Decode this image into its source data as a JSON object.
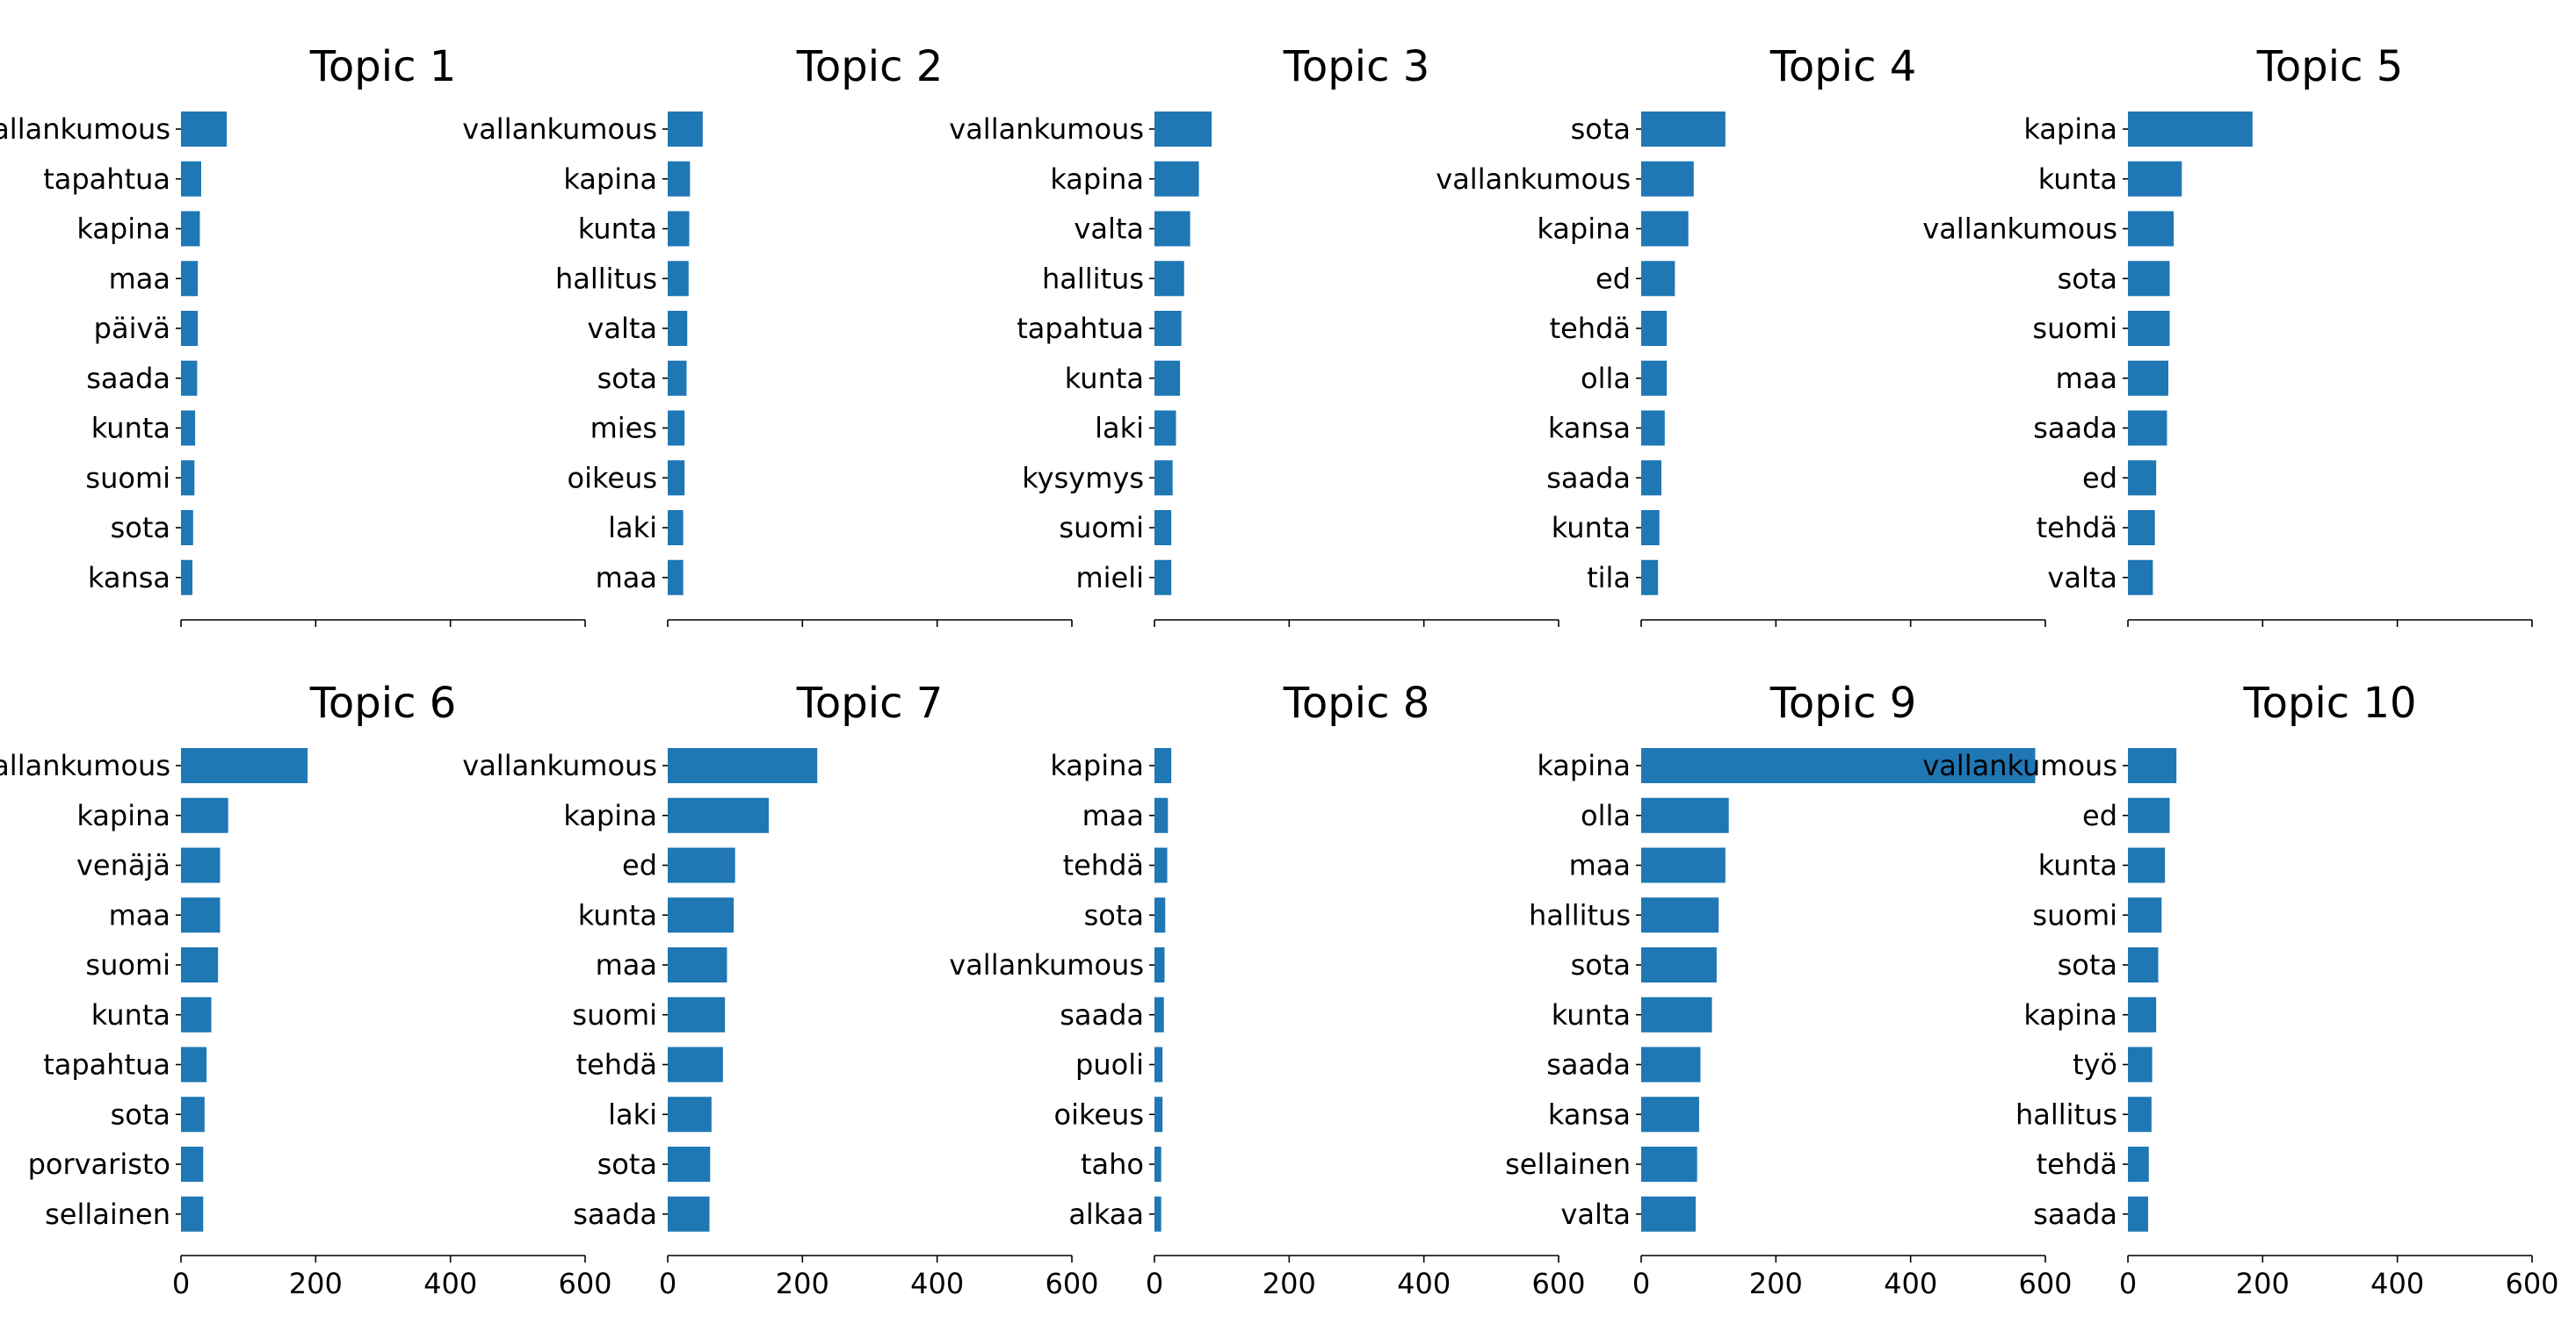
{
  "figure": {
    "bar_color": "#1f77b4",
    "axis_color": "#000000",
    "background": "#ffffff"
  },
  "chart_data": [
    {
      "type": "bar",
      "orientation": "horizontal",
      "title": "Topic 1",
      "categories": [
        "vallankumous",
        "tapahtua",
        "kapina",
        "maa",
        "päivä",
        "saada",
        "kunta",
        "suomi",
        "sota",
        "kansa"
      ],
      "values": [
        68,
        30,
        28,
        25,
        25,
        24,
        21,
        20,
        18,
        17
      ],
      "xlim": [
        0,
        600
      ],
      "xticks": [
        "0",
        "200",
        "400",
        "600"
      ],
      "show_tick_labels": false,
      "grid": false
    },
    {
      "type": "bar",
      "orientation": "horizontal",
      "title": "Topic 2",
      "categories": [
        "vallankumous",
        "kapina",
        "kunta",
        "hallitus",
        "valta",
        "sota",
        "mies",
        "oikeus",
        "laki",
        "maa"
      ],
      "values": [
        52,
        33,
        32,
        31,
        29,
        28,
        25,
        25,
        23,
        23
      ],
      "xlim": [
        0,
        600
      ],
      "xticks": [
        "0",
        "200",
        "400",
        "600"
      ],
      "show_tick_labels": false,
      "grid": false
    },
    {
      "type": "bar",
      "orientation": "horizontal",
      "title": "Topic 3",
      "categories": [
        "vallankumous",
        "kapina",
        "valta",
        "hallitus",
        "tapahtua",
        "kunta",
        "laki",
        "kysymys",
        "suomi",
        "mieli"
      ],
      "values": [
        85,
        66,
        53,
        44,
        40,
        38,
        32,
        27,
        25,
        25
      ],
      "xlim": [
        0,
        600
      ],
      "xticks": [
        "0",
        "200",
        "400",
        "600"
      ],
      "show_tick_labels": false,
      "grid": false
    },
    {
      "type": "bar",
      "orientation": "horizontal",
      "title": "Topic 4",
      "categories": [
        "sota",
        "vallankumous",
        "kapina",
        "ed",
        "tehdä",
        "olla",
        "kansa",
        "saada",
        "kunta",
        "tila"
      ],
      "values": [
        125,
        78,
        70,
        50,
        38,
        38,
        35,
        30,
        27,
        25
      ],
      "xlim": [
        0,
        600
      ],
      "xticks": [
        "0",
        "200",
        "400",
        "600"
      ],
      "show_tick_labels": false,
      "grid": false
    },
    {
      "type": "bar",
      "orientation": "horizontal",
      "title": "Topic 5",
      "categories": [
        "kapina",
        "kunta",
        "vallankumous",
        "sota",
        "suomi",
        "maa",
        "saada",
        "ed",
        "tehdä",
        "valta"
      ],
      "values": [
        185,
        80,
        68,
        62,
        62,
        60,
        58,
        42,
        40,
        37
      ],
      "xlim": [
        0,
        600
      ],
      "xticks": [
        "0",
        "200",
        "400",
        "600"
      ],
      "show_tick_labels": false,
      "grid": false
    },
    {
      "type": "bar",
      "orientation": "horizontal",
      "title": "Topic 6",
      "categories": [
        "vallankumous",
        "kapina",
        "venäjä",
        "maa",
        "suomi",
        "kunta",
        "tapahtua",
        "sota",
        "porvaristo",
        "sellainen"
      ],
      "values": [
        188,
        70,
        58,
        58,
        55,
        45,
        38,
        35,
        33,
        33
      ],
      "xlim": [
        0,
        600
      ],
      "xticks": [
        "0",
        "200",
        "400",
        "600"
      ],
      "show_tick_labels": true,
      "grid": false
    },
    {
      "type": "bar",
      "orientation": "horizontal",
      "title": "Topic 7",
      "categories": [
        "vallankumous",
        "kapina",
        "ed",
        "kunta",
        "maa",
        "suomi",
        "tehdä",
        "laki",
        "sota",
        "saada"
      ],
      "values": [
        222,
        150,
        100,
        98,
        88,
        85,
        82,
        65,
        63,
        62
      ],
      "xlim": [
        0,
        600
      ],
      "xticks": [
        "0",
        "200",
        "400",
        "600"
      ],
      "show_tick_labels": true,
      "grid": false
    },
    {
      "type": "bar",
      "orientation": "horizontal",
      "title": "Topic 8",
      "categories": [
        "kapina",
        "maa",
        "tehdä",
        "sota",
        "vallankumous",
        "saada",
        "puoli",
        "oikeus",
        "taho",
        "alkaa"
      ],
      "values": [
        25,
        20,
        19,
        16,
        15,
        14,
        12,
        12,
        10,
        10
      ],
      "xlim": [
        0,
        600
      ],
      "xticks": [
        "0",
        "200",
        "400",
        "600"
      ],
      "show_tick_labels": true,
      "grid": false
    },
    {
      "type": "bar",
      "orientation": "horizontal",
      "title": "Topic 9",
      "categories": [
        "kapina",
        "olla",
        "maa",
        "hallitus",
        "sota",
        "kunta",
        "saada",
        "kansa",
        "sellainen",
        "valta"
      ],
      "values": [
        585,
        130,
        125,
        115,
        112,
        105,
        88,
        86,
        83,
        81
      ],
      "xlim": [
        0,
        600
      ],
      "xticks": [
        "0",
        "200",
        "400",
        "600"
      ],
      "show_tick_labels": true,
      "grid": false
    },
    {
      "type": "bar",
      "orientation": "horizontal",
      "title": "Topic 10",
      "categories": [
        "vallankumous",
        "ed",
        "kunta",
        "suomi",
        "sota",
        "kapina",
        "työ",
        "hallitus",
        "tehdä",
        "saada"
      ],
      "values": [
        72,
        62,
        55,
        50,
        45,
        42,
        36,
        35,
        31,
        30
      ],
      "xlim": [
        0,
        600
      ],
      "xticks": [
        "0",
        "200",
        "400",
        "600"
      ],
      "show_tick_labels": true,
      "grid": false
    }
  ]
}
